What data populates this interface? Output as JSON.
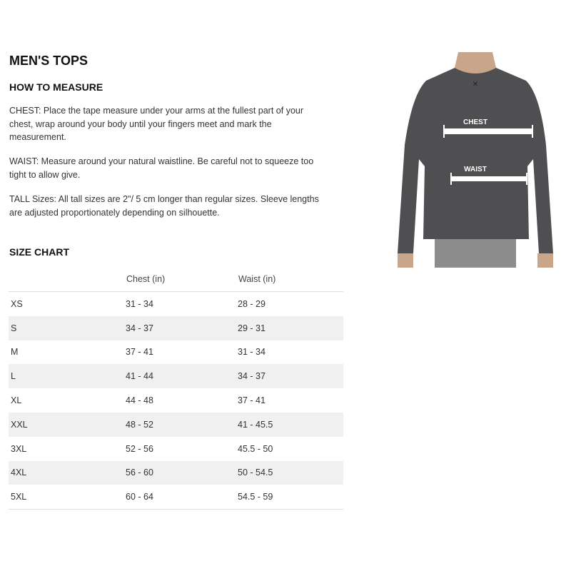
{
  "title": "MEN'S TOPS",
  "how_to_measure": {
    "heading": "HOW TO MEASURE",
    "chest": "CHEST: Place the tape measure under your arms at the fullest part of your chest, wrap around your body until your fingers meet and mark the measurement.",
    "waist": "WAIST: Measure around your natural waistline. Be careful not to squeeze too tight to allow give.",
    "tall": "TALL Sizes: All tall sizes are 2\"/ 5 cm longer than regular sizes. Sleeve lengths are adjusted proportionately depending on silhouette."
  },
  "size_chart": {
    "heading": "SIZE CHART",
    "columns": [
      "",
      "Chest (in)",
      "Waist (in)"
    ],
    "rows": [
      [
        "XS",
        "31 - 34",
        "28 - 29"
      ],
      [
        "S",
        "34 - 37",
        "29 - 31"
      ],
      [
        "M",
        "37 - 41",
        "31 - 34"
      ],
      [
        "L",
        "41 - 44",
        "34 - 37"
      ],
      [
        "XL",
        "44 - 48",
        "37 - 41"
      ],
      [
        "XXL",
        "48 - 52",
        "41 - 45.5"
      ],
      [
        "3XL",
        "52 - 56",
        "45.5 - 50"
      ],
      [
        "4XL",
        "56 - 60",
        "50 - 54.5"
      ],
      [
        "5XL",
        "60 - 64",
        "54.5 - 59"
      ]
    ]
  },
  "image": {
    "chest_label": "CHEST",
    "waist_label": "WAIST"
  }
}
